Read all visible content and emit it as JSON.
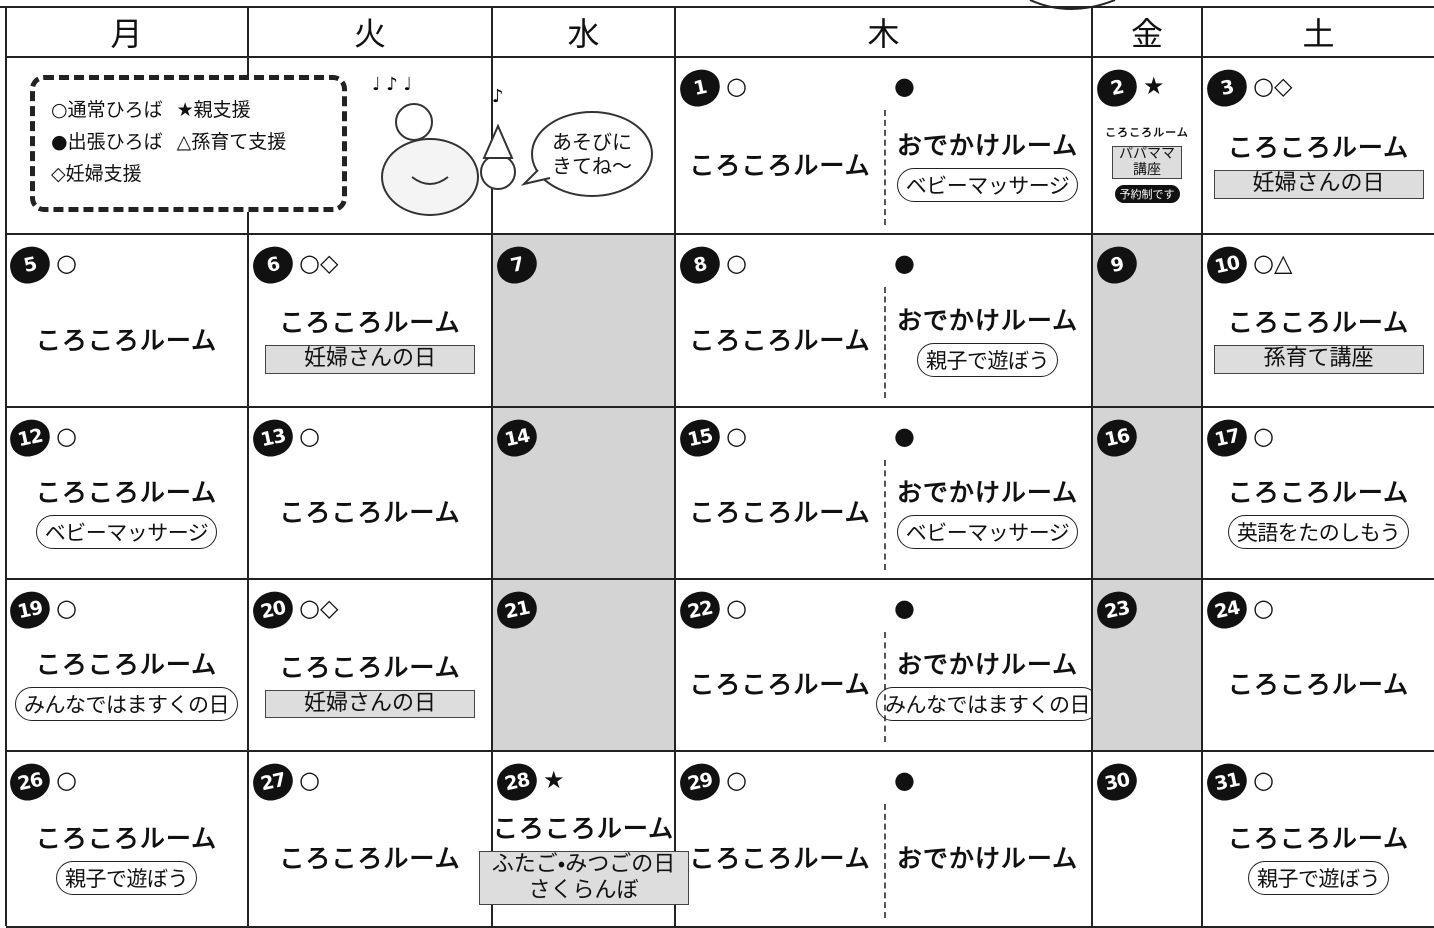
{
  "header": {
    "days": [
      "月",
      "火",
      "水",
      "木",
      "金",
      "土"
    ]
  },
  "legend": {
    "rows": [
      [
        "○通常ひろば",
        "★親支援"
      ],
      [
        "●出張ひろば",
        "△孫育て支援"
      ],
      [
        "◇妊婦支援"
      ]
    ]
  },
  "bubble": {
    "lines": [
      "あそびに",
      "きてね～"
    ]
  },
  "weeks": [
    [
      null,
      null,
      null,
      {
        "day": "1",
        "marks": "○",
        "main": "ころころルーム",
        "right": {
          "marks": "●",
          "main": "おでかけルーム",
          "sub": {
            "style": "pill",
            "lines": [
              "ベビーマッサージ"
            ]
          }
        }
      },
      {
        "day": "2",
        "marks": "★",
        "main": "ころころルーム",
        "sub": {
          "style": "box",
          "lines": [
            "パパママ",
            "講座"
          ]
        },
        "badge": "予約制です"
      },
      {
        "day": "3",
        "marks": "○◇",
        "main": "ころころルーム",
        "sub": {
          "style": "box",
          "lines": [
            "妊婦さんの日"
          ]
        }
      }
    ],
    [
      {
        "day": "5",
        "marks": "○",
        "main": "ころころルーム"
      },
      {
        "day": "6",
        "marks": "○◇",
        "main": "ころころルーム",
        "sub": {
          "style": "box",
          "lines": [
            "妊婦さんの日"
          ]
        }
      },
      {
        "day": "7",
        "shaded": true
      },
      {
        "day": "8",
        "marks": "○",
        "main": "ころころルーム",
        "right": {
          "marks": "●",
          "main": "おでかけルーム",
          "sub": {
            "style": "pill",
            "lines": [
              "親子で遊ぼう"
            ]
          }
        }
      },
      {
        "day": "9",
        "shaded": true
      },
      {
        "day": "10",
        "marks": "○△",
        "main": "ころころルーム",
        "sub": {
          "style": "box",
          "lines": [
            "孫育て講座"
          ]
        }
      }
    ],
    [
      {
        "day": "12",
        "marks": "○",
        "main": "ころころルーム",
        "sub": {
          "style": "pill",
          "lines": [
            "ベビーマッサージ"
          ]
        }
      },
      {
        "day": "13",
        "marks": "○",
        "main": "ころころルーム"
      },
      {
        "day": "14",
        "shaded": true
      },
      {
        "day": "15",
        "marks": "○",
        "main": "ころころルーム",
        "right": {
          "marks": "●",
          "main": "おでかけルーム",
          "sub": {
            "style": "pill",
            "lines": [
              "ベビーマッサージ"
            ]
          }
        }
      },
      {
        "day": "16",
        "shaded": true
      },
      {
        "day": "17",
        "marks": "○",
        "main": "ころころルーム",
        "sub": {
          "style": "pill",
          "lines": [
            "英語をたのしもう"
          ]
        }
      }
    ],
    [
      {
        "day": "19",
        "marks": "○",
        "main": "ころころルーム",
        "sub": {
          "style": "pill",
          "lines": [
            "みんなではますくの日"
          ]
        }
      },
      {
        "day": "20",
        "marks": "○◇",
        "main": "ころころルーム",
        "sub": {
          "style": "box",
          "lines": [
            "妊婦さんの日"
          ]
        }
      },
      {
        "day": "21",
        "shaded": true
      },
      {
        "day": "22",
        "marks": "○",
        "main": "ころころルーム",
        "right": {
          "marks": "●",
          "main": "おでかけルーム",
          "sub": {
            "style": "pill",
            "lines": [
              "みんなではますくの日"
            ]
          }
        }
      },
      {
        "day": "23",
        "shaded": true
      },
      {
        "day": "24",
        "marks": "○",
        "main": "ころころルーム"
      }
    ],
    [
      {
        "day": "26",
        "marks": "○",
        "main": "ころころルーム",
        "sub": {
          "style": "pill",
          "lines": [
            "親子で遊ぼう"
          ]
        }
      },
      {
        "day": "27",
        "marks": "○",
        "main": "ころころルーム"
      },
      {
        "day": "28",
        "marks": "★",
        "main": "ころころルーム",
        "sub": {
          "style": "box",
          "lines": [
            "ふたご・みつごの日",
            "さくらんぼ"
          ]
        }
      },
      {
        "day": "29",
        "marks": "○",
        "main": "ころころルーム",
        "right": {
          "marks": "●",
          "main": "おでかけルーム"
        }
      },
      {
        "day": "30"
      },
      {
        "day": "31",
        "marks": "○",
        "main": "ころころルーム",
        "sub": {
          "style": "pill",
          "lines": [
            "親子で遊ぼう"
          ]
        }
      }
    ]
  ]
}
